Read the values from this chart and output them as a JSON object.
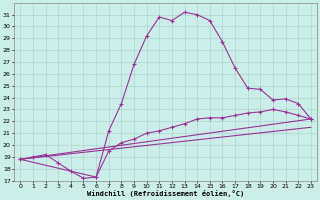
{
  "xlabel": "Windchill (Refroidissement éolien,°C)",
  "background_color": "#cceee8",
  "line_color": "#993399",
  "xlim": [
    -0.5,
    23.5
  ],
  "ylim": [
    17,
    32
  ],
  "yticks": [
    17,
    18,
    19,
    20,
    21,
    22,
    23,
    24,
    25,
    26,
    27,
    28,
    29,
    30,
    31
  ],
  "xticks": [
    0,
    1,
    2,
    3,
    4,
    5,
    6,
    7,
    8,
    9,
    10,
    11,
    12,
    13,
    14,
    15,
    16,
    17,
    18,
    19,
    20,
    21,
    22,
    23
  ],
  "line1_x": [
    0,
    1,
    2,
    3,
    4,
    5,
    6,
    7,
    8,
    9,
    10,
    11,
    12,
    13,
    14,
    15,
    16,
    17,
    18,
    19,
    20,
    21,
    22,
    23
  ],
  "line1_y": [
    18.8,
    19.0,
    19.2,
    18.5,
    17.8,
    17.2,
    17.3,
    21.2,
    23.5,
    26.8,
    29.2,
    30.8,
    30.5,
    31.2,
    31.0,
    30.5,
    28.7,
    26.5,
    24.8,
    24.7,
    23.8,
    23.9,
    23.5,
    22.2
  ],
  "line2_x": [
    0,
    6,
    7,
    8,
    9,
    10,
    11,
    12,
    13,
    14,
    15,
    16,
    17,
    18,
    19,
    20,
    21,
    22,
    23
  ],
  "line2_y": [
    18.8,
    17.3,
    19.5,
    20.2,
    20.5,
    21.0,
    21.2,
    21.5,
    21.8,
    22.2,
    22.3,
    22.3,
    22.5,
    22.7,
    22.8,
    23.0,
    22.8,
    22.5,
    22.2
  ],
  "line3_x": [
    0,
    23
  ],
  "line3_y": [
    18.8,
    22.2
  ],
  "line4_x": [
    0,
    23
  ],
  "line4_y": [
    18.8,
    22.2
  ]
}
